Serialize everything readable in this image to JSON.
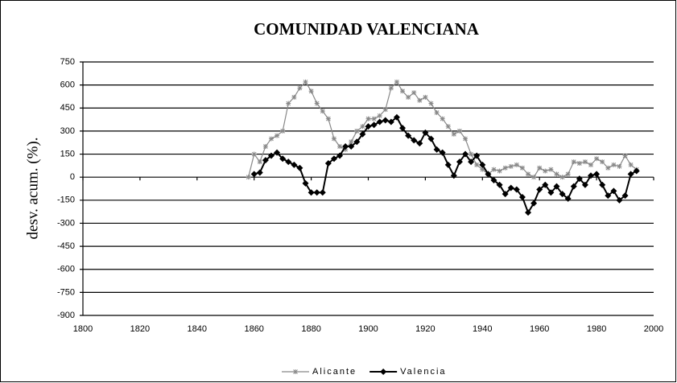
{
  "chart_data": {
    "type": "line",
    "title": "COMUNIDAD VALENCIANA",
    "y_label": "desv. acum. (%).",
    "x": [
      1858,
      1860,
      1862,
      1864,
      1866,
      1868,
      1870,
      1872,
      1874,
      1876,
      1878,
      1880,
      1882,
      1884,
      1886,
      1888,
      1890,
      1892,
      1894,
      1896,
      1898,
      1900,
      1902,
      1904,
      1906,
      1908,
      1910,
      1912,
      1914,
      1916,
      1918,
      1920,
      1922,
      1924,
      1926,
      1928,
      1930,
      1932,
      1934,
      1936,
      1938,
      1940,
      1942,
      1944,
      1946,
      1948,
      1950,
      1952,
      1954,
      1956,
      1958,
      1960,
      1962,
      1964,
      1966,
      1968,
      1970,
      1972,
      1974,
      1976,
      1978,
      1980,
      1982,
      1984,
      1986,
      1988,
      1990,
      1992,
      1994
    ],
    "series": [
      {
        "name": "Alicante",
        "color": "#888888",
        "values": [
          0,
          150,
          100,
          200,
          250,
          270,
          300,
          480,
          520,
          580,
          620,
          560,
          480,
          430,
          380,
          250,
          200,
          180,
          230,
          300,
          330,
          380,
          380,
          400,
          440,
          580,
          620,
          560,
          520,
          550,
          500,
          520,
          480,
          420,
          380,
          330,
          280,
          300,
          250,
          150,
          80,
          50,
          20,
          50,
          40,
          60,
          70,
          80,
          60,
          20,
          0,
          60,
          40,
          50,
          20,
          0,
          20,
          100,
          90,
          100,
          80,
          120,
          100,
          60,
          80,
          70,
          140,
          80,
          50
        ]
      },
      {
        "name": "Valencia",
        "color": "#000000",
        "values": [
          null,
          20,
          30,
          110,
          140,
          160,
          120,
          100,
          80,
          60,
          -40,
          -100,
          -100,
          -100,
          90,
          120,
          140,
          200,
          200,
          230,
          280,
          330,
          340,
          360,
          370,
          360,
          390,
          320,
          270,
          240,
          220,
          290,
          250,
          180,
          160,
          80,
          10,
          100,
          150,
          100,
          140,
          80,
          20,
          -20,
          -50,
          -110,
          -70,
          -80,
          -130,
          -230,
          -170,
          -80,
          -50,
          -100,
          -60,
          -110,
          -140,
          -60,
          -10,
          -50,
          10,
          20,
          -50,
          -120,
          -90,
          -150,
          -120,
          20,
          40
        ]
      }
    ],
    "xlim": [
      1800,
      2000
    ],
    "xticks": [
      1800,
      1820,
      1840,
      1860,
      1880,
      1900,
      1920,
      1940,
      1960,
      1980,
      2000
    ],
    "ylim": [
      -900,
      750
    ],
    "yticks": [
      750,
      600,
      450,
      300,
      150,
      0,
      -150,
      -300,
      -450,
      -600,
      -750,
      -900
    ],
    "grid": true,
    "legend": "bottom"
  }
}
